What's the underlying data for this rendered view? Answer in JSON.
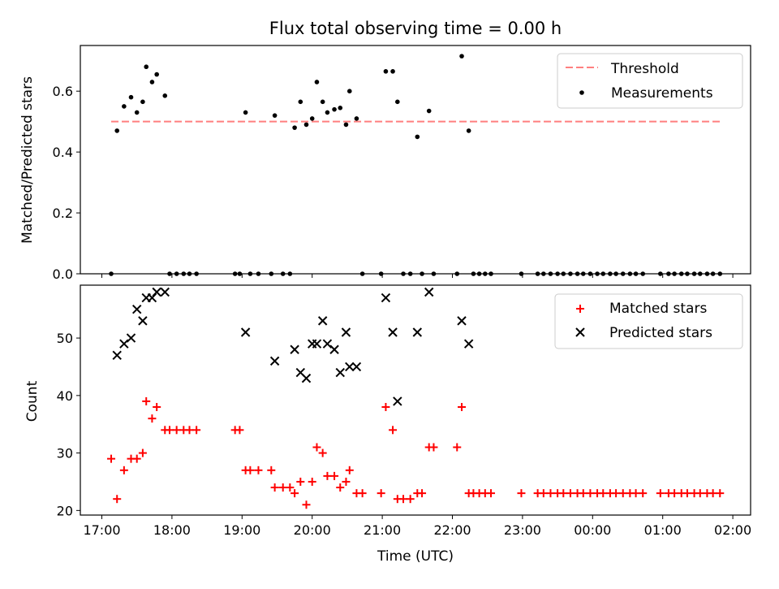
{
  "chart_data": [
    {
      "type": "scatter",
      "title": "Flux total observing time = 0.00 h",
      "ylabel": "Matched/Predicted stars",
      "ylim": [
        0,
        0.75
      ],
      "yticks": [
        0.0,
        0.2,
        0.4,
        0.6
      ],
      "ytick_labels": [
        "0.0",
        "0.2",
        "0.4",
        "0.6"
      ],
      "legend_position": "top-right",
      "threshold": {
        "name": "Threshold",
        "color": "#ff7f7f",
        "style": "dashed",
        "value": 0.5,
        "x_start": "17:08",
        "x_end": "01:49"
      },
      "series": [
        {
          "name": "Measurements",
          "marker": "dot",
          "color": "#000000",
          "points": [
            [
              "17:08",
              0.0
            ],
            [
              "17:13",
              0.47
            ],
            [
              "17:19",
              0.55
            ],
            [
              "17:25",
              0.58
            ],
            [
              "17:30",
              0.53
            ],
            [
              "17:35",
              0.565
            ],
            [
              "17:38",
              0.68
            ],
            [
              "17:43",
              0.63
            ],
            [
              "17:47",
              0.655
            ],
            [
              "17:54",
              0.585
            ],
            [
              "17:58",
              0.0
            ],
            [
              "18:04",
              0.0
            ],
            [
              "18:10",
              0.0
            ],
            [
              "18:15",
              0.0
            ],
            [
              "18:21",
              0.0
            ],
            [
              "18:54",
              0.0
            ],
            [
              "18:58",
              0.0
            ],
            [
              "19:03",
              0.53
            ],
            [
              "19:07",
              0.0
            ],
            [
              "19:14",
              0.0
            ],
            [
              "19:25",
              0.0
            ],
            [
              "19:28",
              0.52
            ],
            [
              "19:35",
              0.0
            ],
            [
              "19:41",
              0.0
            ],
            [
              "19:45",
              0.48
            ],
            [
              "19:50",
              0.565
            ],
            [
              "19:55",
              0.49
            ],
            [
              "20:00",
              0.51
            ],
            [
              "20:04",
              0.63
            ],
            [
              "20:09",
              0.565
            ],
            [
              "20:13",
              0.53
            ],
            [
              "20:19",
              0.54
            ],
            [
              "20:24",
              0.545
            ],
            [
              "20:29",
              0.49
            ],
            [
              "20:32",
              0.6
            ],
            [
              "20:38",
              0.51
            ],
            [
              "20:43",
              0.0
            ],
            [
              "20:59",
              0.0
            ],
            [
              "21:03",
              0.665
            ],
            [
              "21:09",
              0.665
            ],
            [
              "21:13",
              0.565
            ],
            [
              "21:18",
              0.0
            ],
            [
              "21:24",
              0.0
            ],
            [
              "21:30",
              0.45
            ],
            [
              "21:34",
              0.0
            ],
            [
              "21:40",
              0.535
            ],
            [
              "21:44",
              0.0
            ],
            [
              "22:04",
              0.0
            ],
            [
              "22:08",
              0.715
            ],
            [
              "22:14",
              0.47
            ],
            [
              "22:18",
              0.0
            ],
            [
              "22:23",
              0.0
            ],
            [
              "22:28",
              0.0
            ],
            [
              "22:33",
              0.0
            ],
            [
              "22:59",
              0.0
            ],
            [
              "23:13",
              0.0
            ],
            [
              "23:18",
              0.0
            ],
            [
              "23:24",
              0.0
            ],
            [
              "23:30",
              0.0
            ],
            [
              "23:35",
              0.0
            ],
            [
              "23:41",
              0.0
            ],
            [
              "23:47",
              0.0
            ],
            [
              "23:52",
              0.0
            ],
            [
              "23:58",
              0.0
            ],
            [
              "00:04",
              0.0
            ],
            [
              "00:09",
              0.0
            ],
            [
              "00:15",
              0.0
            ],
            [
              "00:20",
              0.0
            ],
            [
              "00:26",
              0.0
            ],
            [
              "00:32",
              0.0
            ],
            [
              "00:37",
              0.0
            ],
            [
              "00:43",
              0.0
            ],
            [
              "00:58",
              0.0
            ],
            [
              "01:05",
              0.0
            ],
            [
              "01:10",
              0.0
            ],
            [
              "01:16",
              0.0
            ],
            [
              "01:21",
              0.0
            ],
            [
              "01:27",
              0.0
            ],
            [
              "01:32",
              0.0
            ],
            [
              "01:38",
              0.0
            ],
            [
              "01:43",
              0.0
            ],
            [
              "01:49",
              0.0
            ]
          ]
        }
      ]
    },
    {
      "type": "scatter",
      "xlabel": "Time (UTC)",
      "ylabel": "Count",
      "ylim": [
        19.2,
        59.2
      ],
      "yticks": [
        20,
        30,
        40,
        50
      ],
      "ytick_labels": [
        "20",
        "30",
        "40",
        "50"
      ],
      "legend_position": "top-right",
      "series": [
        {
          "name": "Matched stars",
          "marker": "plus",
          "color": "#ff0000",
          "points": [
            [
              "17:08",
              29
            ],
            [
              "17:13",
              22
            ],
            [
              "17:19",
              27
            ],
            [
              "17:25",
              29
            ],
            [
              "17:30",
              29
            ],
            [
              "17:35",
              30
            ],
            [
              "17:38",
              39
            ],
            [
              "17:43",
              36
            ],
            [
              "17:47",
              38
            ],
            [
              "17:54",
              34
            ],
            [
              "17:58",
              34
            ],
            [
              "18:04",
              34
            ],
            [
              "18:10",
              34
            ],
            [
              "18:15",
              34
            ],
            [
              "18:21",
              34
            ],
            [
              "18:54",
              34
            ],
            [
              "18:58",
              34
            ],
            [
              "19:03",
              27
            ],
            [
              "19:07",
              27
            ],
            [
              "19:14",
              27
            ],
            [
              "19:25",
              27
            ],
            [
              "19:28",
              24
            ],
            [
              "19:35",
              24
            ],
            [
              "19:41",
              24
            ],
            [
              "19:45",
              23
            ],
            [
              "19:50",
              25
            ],
            [
              "19:55",
              21
            ],
            [
              "20:00",
              25
            ],
            [
              "20:04",
              31
            ],
            [
              "20:09",
              30
            ],
            [
              "20:13",
              26
            ],
            [
              "20:19",
              26
            ],
            [
              "20:24",
              24
            ],
            [
              "20:29",
              25
            ],
            [
              "20:32",
              27
            ],
            [
              "20:38",
              23
            ],
            [
              "20:43",
              23
            ],
            [
              "20:59",
              23
            ],
            [
              "21:03",
              38
            ],
            [
              "21:09",
              34
            ],
            [
              "21:13",
              22
            ],
            [
              "21:18",
              22
            ],
            [
              "21:24",
              22
            ],
            [
              "21:30",
              23
            ],
            [
              "21:34",
              23
            ],
            [
              "21:40",
              31
            ],
            [
              "21:44",
              31
            ],
            [
              "22:04",
              31
            ],
            [
              "22:08",
              38
            ],
            [
              "22:14",
              23
            ],
            [
              "22:18",
              23
            ],
            [
              "22:23",
              23
            ],
            [
              "22:28",
              23
            ],
            [
              "22:33",
              23
            ],
            [
              "22:59",
              23
            ],
            [
              "23:13",
              23
            ],
            [
              "23:18",
              23
            ],
            [
              "23:24",
              23
            ],
            [
              "23:30",
              23
            ],
            [
              "23:35",
              23
            ],
            [
              "23:41",
              23
            ],
            [
              "23:47",
              23
            ],
            [
              "23:52",
              23
            ],
            [
              "23:58",
              23
            ],
            [
              "00:04",
              23
            ],
            [
              "00:09",
              23
            ],
            [
              "00:15",
              23
            ],
            [
              "00:20",
              23
            ],
            [
              "00:26",
              23
            ],
            [
              "00:32",
              23
            ],
            [
              "00:37",
              23
            ],
            [
              "00:43",
              23
            ],
            [
              "00:58",
              23
            ],
            [
              "01:05",
              23
            ],
            [
              "01:10",
              23
            ],
            [
              "01:16",
              23
            ],
            [
              "01:21",
              23
            ],
            [
              "01:27",
              23
            ],
            [
              "01:32",
              23
            ],
            [
              "01:38",
              23
            ],
            [
              "01:43",
              23
            ],
            [
              "01:49",
              23
            ]
          ]
        },
        {
          "name": "Predicted stars",
          "marker": "x",
          "color": "#000000",
          "points": [
            [
              "17:13",
              47
            ],
            [
              "17:19",
              49
            ],
            [
              "17:25",
              50
            ],
            [
              "17:30",
              55
            ],
            [
              "17:35",
              53
            ],
            [
              "17:38",
              57
            ],
            [
              "17:43",
              57
            ],
            [
              "17:47",
              58
            ],
            [
              "17:54",
              58
            ],
            [
              "19:03",
              51
            ],
            [
              "19:28",
              46
            ],
            [
              "19:45",
              48
            ],
            [
              "19:50",
              44
            ],
            [
              "19:55",
              43
            ],
            [
              "20:00",
              49
            ],
            [
              "20:04",
              49
            ],
            [
              "20:09",
              53
            ],
            [
              "20:13",
              49
            ],
            [
              "20:19",
              48
            ],
            [
              "20:24",
              44
            ],
            [
              "20:29",
              51
            ],
            [
              "20:32",
              45
            ],
            [
              "20:38",
              45
            ],
            [
              "21:03",
              57
            ],
            [
              "21:09",
              51
            ],
            [
              "21:13",
              39
            ],
            [
              "21:30",
              51
            ],
            [
              "21:40",
              58
            ],
            [
              "22:08",
              53
            ],
            [
              "22:14",
              49
            ]
          ]
        }
      ],
      "xticks": [
        "17:00",
        "18:00",
        "19:00",
        "20:00",
        "21:00",
        "22:00",
        "23:00",
        "00:00",
        "01:00",
        "02:00"
      ]
    }
  ]
}
